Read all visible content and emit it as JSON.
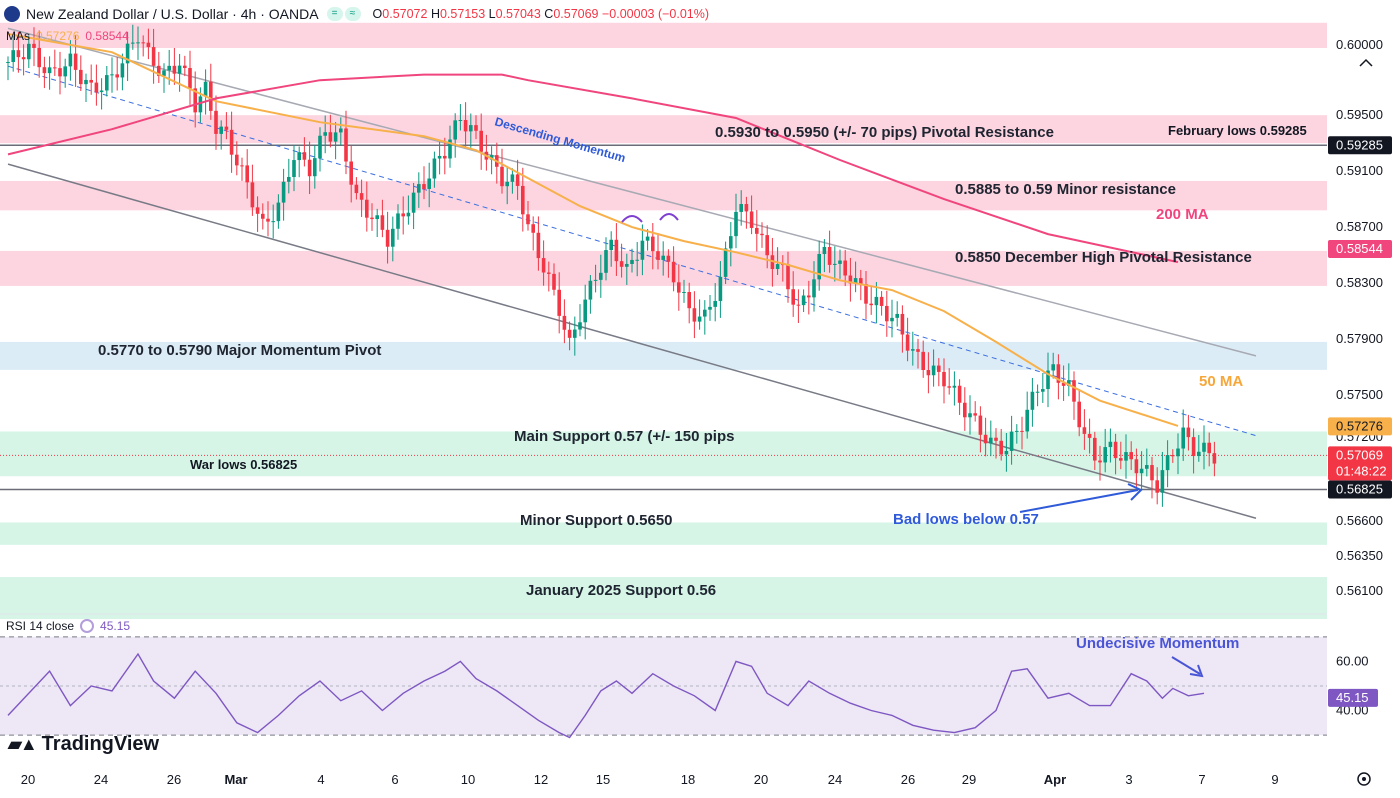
{
  "header": {
    "symbol": "New Zealand Dollar / U.S. Dollar · 4h · OANDA",
    "icon_names": [
      "nz-flag-icon",
      "equals-icon",
      "wave-icon"
    ],
    "ohlc": {
      "o_label": "O",
      "o": "0.57072",
      "h_label": "H",
      "h": "0.57153",
      "l_label": "L",
      "l": "0.57043",
      "c_label": "C",
      "c": "0.57069",
      "change": "−0.00003 (−0.01%)"
    }
  },
  "mas_legend": {
    "label": "MAs",
    "ma50_value": "0.57276",
    "ma200_value": "0.58544"
  },
  "rsi_legend": {
    "label": "RSI 14 close",
    "value": "45.15"
  },
  "logo_text": "TradingView",
  "colors": {
    "up": "#089981",
    "down": "#f23645",
    "ma50": "#f7b04a",
    "ma200": "#f0457d",
    "resistance_zone": "#fcd5e0",
    "pivot_zone": "#dcecf6",
    "support_zone": "#d6f5e7",
    "rsi_line": "#7e57c2",
    "rsi_band": "#ede7f6",
    "annotation_blue": "#2f5ad8"
  },
  "chart_data": {
    "type": "candlestick",
    "instrument": "NZD/USD",
    "timeframe": "4h",
    "price_axis": {
      "ticks": [
        0.6,
        0.595,
        0.591,
        0.587,
        0.583,
        0.579,
        0.575,
        0.572,
        0.566,
        0.5635,
        0.561
      ],
      "tick_labels": [
        "0.60000",
        "0.59500",
        "0.59100",
        "0.58700",
        "0.58300",
        "0.57900",
        "0.57500",
        "0.57200",
        "0.56600",
        "0.56350",
        "0.56100"
      ],
      "range": [
        0.5595,
        0.6018
      ]
    },
    "x_axis": {
      "labels": [
        "20",
        "24",
        "26",
        "Mar",
        "4",
        "6",
        "10",
        "12",
        "15",
        "18",
        "20",
        "24",
        "26",
        "29",
        "Apr",
        "3",
        "7",
        "9"
      ],
      "bold_labels": [
        "Mar",
        "Apr"
      ]
    },
    "price_badges": [
      {
        "value": "0.59285",
        "style": "black"
      },
      {
        "value": "0.58544",
        "style": "ma200"
      },
      {
        "value": "0.57276",
        "style": "ma50"
      },
      {
        "value": "0.57069",
        "style": "last",
        "sub": "01:48:22"
      },
      {
        "value": "0.56825",
        "style": "black"
      }
    ],
    "zones": [
      {
        "low": 0.5998,
        "high": 0.6016,
        "kind": "resistance"
      },
      {
        "low": 0.593,
        "high": 0.595,
        "kind": "resistance",
        "label": "0.5930 to 0.5950 (+/- 70 pips) Pivotal Resistance"
      },
      {
        "low": 0.5882,
        "high": 0.5903,
        "kind": "resistance",
        "label": "0.5885 to 0.59 Minor resistance"
      },
      {
        "low": 0.5828,
        "high": 0.5853,
        "kind": "resistance",
        "label": "0.5850 December High Pivotal Resistance"
      },
      {
        "low": 0.5768,
        "high": 0.5788,
        "kind": "pivot",
        "label": "0.5770 to 0.5790 Major Momentum Pivot"
      },
      {
        "low": 0.5692,
        "high": 0.5724,
        "kind": "support",
        "label": "Main Support 0.57 (+/- 150 pips"
      },
      {
        "low": 0.5643,
        "high": 0.5659,
        "kind": "support",
        "label": "Minor Support 0.5650"
      },
      {
        "low": 0.559,
        "high": 0.562,
        "kind": "support",
        "label": "January 2025 Support 0.56"
      }
    ],
    "hlines": [
      {
        "price": 0.59285,
        "label": "February lows 0.59285"
      },
      {
        "price": 0.56825,
        "label": "War lows 0.56825"
      },
      {
        "price": 0.57069,
        "kind": "last"
      }
    ],
    "annotations": {
      "ma50": "50 MA",
      "ma200": "200 MA",
      "descending": "Descending Momentum",
      "bad_lows": "Bad lows below 0.57",
      "rsi": "Undecisive Momentum"
    },
    "close_path": [
      [
        0,
        0.5988
      ],
      [
        4,
        0.5998
      ],
      [
        8,
        0.5979
      ],
      [
        12,
        0.5988
      ],
      [
        16,
        0.5968
      ],
      [
        20,
        0.5976
      ],
      [
        25,
        0.6008
      ],
      [
        27,
        0.5993
      ],
      [
        30,
        0.5978
      ],
      [
        33,
        0.5988
      ],
      [
        36,
        0.5958
      ],
      [
        38,
        0.5968
      ],
      [
        40,
        0.5942
      ],
      [
        42,
        0.5935
      ],
      [
        46,
        0.59
      ],
      [
        49,
        0.587
      ],
      [
        52,
        0.5885
      ],
      [
        55,
        0.5922
      ],
      [
        58,
        0.5912
      ],
      [
        61,
        0.5938
      ],
      [
        64,
        0.5935
      ],
      [
        67,
        0.589
      ],
      [
        70,
        0.5878
      ],
      [
        73,
        0.5862
      ],
      [
        76,
        0.588
      ],
      [
        80,
        0.5902
      ],
      [
        84,
        0.5925
      ],
      [
        87,
        0.5948
      ],
      [
        89,
        0.594
      ],
      [
        92,
        0.5922
      ],
      [
        95,
        0.5905
      ],
      [
        98,
        0.59
      ],
      [
        100,
        0.587
      ],
      [
        103,
        0.5842
      ],
      [
        106,
        0.5812
      ],
      [
        108,
        0.5785
      ],
      [
        110,
        0.5808
      ],
      [
        113,
        0.5835
      ],
      [
        116,
        0.5857
      ],
      [
        119,
        0.5838
      ],
      [
        122,
        0.586
      ],
      [
        125,
        0.5852
      ],
      [
        128,
        0.5835
      ],
      [
        131,
        0.581
      ],
      [
        134,
        0.5805
      ],
      [
        137,
        0.5832
      ],
      [
        140,
        0.5885
      ],
      [
        143,
        0.5875
      ],
      [
        146,
        0.585
      ],
      [
        149,
        0.5838
      ],
      [
        152,
        0.581
      ],
      [
        154,
        0.5825
      ],
      [
        157,
        0.5855
      ],
      [
        159,
        0.5843
      ],
      [
        162,
        0.5835
      ],
      [
        165,
        0.582
      ],
      [
        168,
        0.5812
      ],
      [
        171,
        0.5802
      ],
      [
        174,
        0.578
      ],
      [
        177,
        0.5768
      ],
      [
        180,
        0.5762
      ],
      [
        183,
        0.5745
      ],
      [
        186,
        0.573
      ],
      [
        189,
        0.5715
      ],
      [
        192,
        0.5712
      ],
      [
        195,
        0.573
      ],
      [
        198,
        0.5755
      ],
      [
        201,
        0.5768
      ],
      [
        204,
        0.5755
      ],
      [
        207,
        0.5722
      ],
      [
        209,
        0.5705
      ],
      [
        212,
        0.5712
      ],
      [
        215,
        0.5704
      ],
      [
        218,
        0.5698
      ],
      [
        221,
        0.5686
      ],
      [
        224,
        0.571
      ],
      [
        226,
        0.5722
      ],
      [
        228,
        0.5712
      ],
      [
        230,
        0.571
      ],
      [
        232,
        0.5707
      ]
    ],
    "candle_count": 233,
    "series": [
      {
        "name": "50 MA",
        "kind": "ma50",
        "path": [
          [
            0,
            0.6008
          ],
          [
            20,
            0.5995
          ],
          [
            40,
            0.596
          ],
          [
            60,
            0.5945
          ],
          [
            80,
            0.5935
          ],
          [
            90,
            0.5925
          ],
          [
            100,
            0.5905
          ],
          [
            110,
            0.5885
          ],
          [
            120,
            0.587
          ],
          [
            130,
            0.586
          ],
          [
            140,
            0.5852
          ],
          [
            150,
            0.5843
          ],
          [
            160,
            0.5832
          ],
          [
            170,
            0.5825
          ],
          [
            180,
            0.581
          ],
          [
            190,
            0.5788
          ],
          [
            200,
            0.5765
          ],
          [
            210,
            0.5746
          ],
          [
            225,
            0.5728
          ]
        ]
      },
      {
        "name": "200 MA",
        "kind": "ma200",
        "path": [
          [
            0,
            0.5922
          ],
          [
            20,
            0.594
          ],
          [
            40,
            0.5962
          ],
          [
            60,
            0.5975
          ],
          [
            80,
            0.5979
          ],
          [
            95,
            0.5979
          ],
          [
            100,
            0.5975
          ],
          [
            120,
            0.5962
          ],
          [
            140,
            0.5948
          ],
          [
            160,
            0.5918
          ],
          [
            180,
            0.589
          ],
          [
            200,
            0.5865
          ],
          [
            225,
            0.5845
          ]
        ]
      }
    ],
    "channel": {
      "upper": [
        [
          0,
          0.6012
        ],
        [
          240,
          0.5778
        ]
      ],
      "lower": [
        [
          0,
          0.5915
        ],
        [
          240,
          0.5662
        ]
      ],
      "mid": [
        [
          0,
          0.5985
        ],
        [
          240,
          0.5721
        ]
      ]
    },
    "rsi": {
      "ticks": [
        60,
        40
      ],
      "tick_labels": [
        "60.00",
        "40.00"
      ],
      "band": [
        30,
        70
      ],
      "range": [
        28,
        74
      ],
      "path": [
        [
          0,
          38
        ],
        [
          8,
          56
        ],
        [
          12,
          42
        ],
        [
          16,
          50
        ],
        [
          20,
          48
        ],
        [
          25,
          63
        ],
        [
          28,
          52
        ],
        [
          32,
          45
        ],
        [
          36,
          56
        ],
        [
          40,
          47
        ],
        [
          44,
          35
        ],
        [
          48,
          31
        ],
        [
          52,
          38
        ],
        [
          56,
          46
        ],
        [
          60,
          52
        ],
        [
          64,
          44
        ],
        [
          68,
          48
        ],
        [
          72,
          40
        ],
        [
          76,
          47
        ],
        [
          80,
          52
        ],
        [
          84,
          56
        ],
        [
          87,
          60
        ],
        [
          90,
          53
        ],
        [
          94,
          48
        ],
        [
          98,
          42
        ],
        [
          102,
          36
        ],
        [
          106,
          31
        ],
        [
          108,
          29
        ],
        [
          111,
          38
        ],
        [
          114,
          48
        ],
        [
          117,
          52
        ],
        [
          120,
          47
        ],
        [
          124,
          55
        ],
        [
          128,
          50
        ],
        [
          132,
          46
        ],
        [
          136,
          40
        ],
        [
          140,
          60
        ],
        [
          143,
          58
        ],
        [
          146,
          47
        ],
        [
          150,
          42
        ],
        [
          154,
          52
        ],
        [
          158,
          47
        ],
        [
          162,
          43
        ],
        [
          166,
          40
        ],
        [
          170,
          38
        ],
        [
          174,
          34
        ],
        [
          178,
          32
        ],
        [
          182,
          31
        ],
        [
          186,
          33
        ],
        [
          190,
          40
        ],
        [
          193,
          56
        ],
        [
          196,
          57
        ],
        [
          200,
          45
        ],
        [
          204,
          47
        ],
        [
          208,
          42
        ],
        [
          212,
          42
        ],
        [
          216,
          55
        ],
        [
          219,
          52
        ],
        [
          222,
          45
        ],
        [
          224,
          49
        ],
        [
          227,
          46
        ],
        [
          230,
          47
        ]
      ]
    }
  }
}
